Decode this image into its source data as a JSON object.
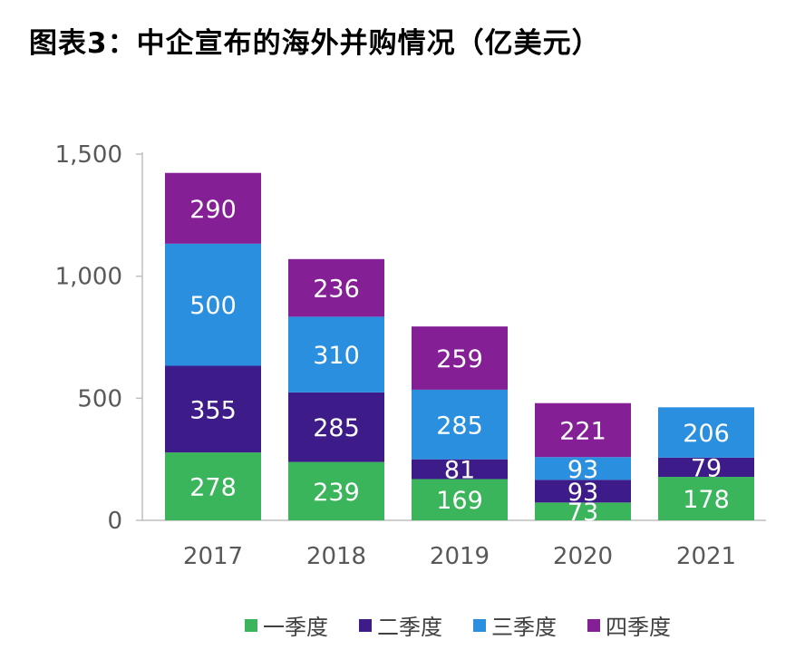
{
  "chart_data": {
    "type": "bar",
    "stacked": true,
    "title": "图表3：中企宣布的海外并购情况（亿美元）",
    "categories": [
      "2017",
      "2018",
      "2019",
      "2020",
      "2021"
    ],
    "series": [
      {
        "name": "一季度",
        "color": "#3bb55c",
        "values": [
          278,
          239,
          169,
          73,
          178
        ]
      },
      {
        "name": "二季度",
        "color": "#3d1b88",
        "values": [
          355,
          285,
          81,
          93,
          79
        ]
      },
      {
        "name": "三季度",
        "color": "#2b8fe0",
        "values": [
          500,
          310,
          285,
          93,
          206
        ]
      },
      {
        "name": "四季度",
        "color": "#841f95",
        "values": [
          290,
          236,
          259,
          221,
          null
        ]
      }
    ],
    "ylim": [
      0,
      1500
    ],
    "yticks": [
      "0",
      "500",
      "1,000",
      "1,500"
    ],
    "ytick_values": [
      0,
      500,
      1000,
      1500
    ],
    "grid": false,
    "legend": "bottom"
  }
}
